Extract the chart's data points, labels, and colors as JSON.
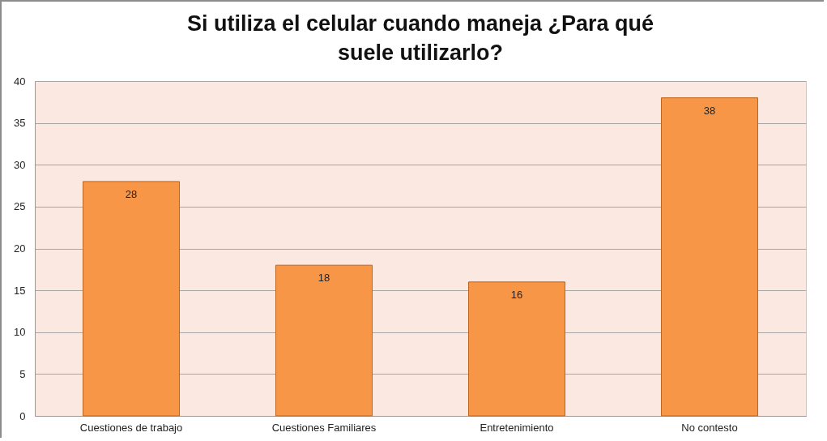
{
  "chart_data": {
    "type": "bar",
    "title": "Si utiliza el celular cuando maneja ¿Para qué suele utilizarlo?",
    "categories": [
      "Cuestiones de trabajo",
      "Cuestiones Familiares",
      "Entretenimiento",
      "No contesto"
    ],
    "values": [
      28,
      18,
      16,
      38
    ],
    "color": "#f79646",
    "ylim": [
      0,
      40
    ],
    "yticks": [
      0,
      5,
      10,
      15,
      20,
      25,
      30,
      35,
      40
    ],
    "grid": "y",
    "data_labels": true
  }
}
